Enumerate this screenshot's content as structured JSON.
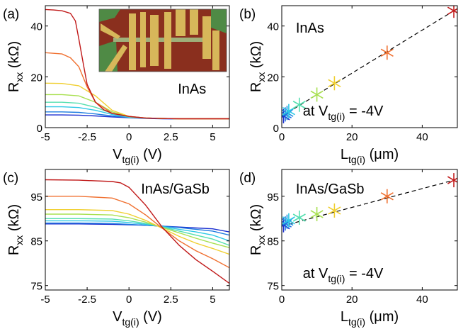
{
  "chart_data": [
    {
      "panel": "(a)",
      "type": "line",
      "annotation": "InAs",
      "inset": "optical micrograph of gated device",
      "xlabel": "V",
      "xlabel_sub": "tg(i)",
      "xlabel_unit": " (V)",
      "ylabel": "R",
      "ylabel_sub": "xx",
      "ylabel_unit": " (kΩ)",
      "xlim": [
        -5,
        6
      ],
      "ylim": [
        0,
        48
      ],
      "xticks": [
        -5,
        -2.5,
        0,
        2.5,
        5
      ],
      "xtick_labels": [
        "-5",
        "-2.5",
        "0",
        "2.5",
        "5"
      ],
      "yticks": [
        0,
        20,
        40
      ],
      "ytick_labels": [
        "0",
        "20",
        "40"
      ],
      "series": [
        {
          "color": "#1a2fd0",
          "x": [
            -5,
            -4,
            -3,
            -2,
            -1,
            0,
            1,
            2,
            3,
            4,
            5,
            6
          ],
          "y": [
            5.0,
            5.0,
            4.9,
            4.6,
            4.2,
            3.9,
            3.6,
            3.5,
            3.4,
            3.4,
            3.4,
            3.4
          ]
        },
        {
          "color": "#1e7de0",
          "x": [
            -5,
            -4,
            -3,
            -2,
            -1,
            0,
            1,
            2,
            3,
            4,
            5,
            6
          ],
          "y": [
            6.2,
            6.2,
            6.0,
            5.4,
            4.6,
            4.0,
            3.7,
            3.6,
            3.5,
            3.5,
            3.5,
            3.5
          ]
        },
        {
          "color": "#2ec9e6",
          "x": [
            -5,
            -4,
            -3,
            -2,
            -1,
            0,
            1,
            2,
            3,
            4,
            5,
            6
          ],
          "y": [
            8.2,
            8.2,
            7.9,
            6.8,
            5.2,
            4.1,
            3.7,
            3.6,
            3.5,
            3.5,
            3.5,
            3.5
          ]
        },
        {
          "color": "#55dfb0",
          "x": [
            -5,
            -4,
            -3,
            -2,
            -1,
            0,
            1,
            2,
            3,
            4,
            5,
            6
          ],
          "y": [
            10.0,
            10.0,
            9.6,
            8.0,
            5.6,
            4.2,
            3.8,
            3.6,
            3.5,
            3.5,
            3.5,
            3.5
          ]
        },
        {
          "color": "#a8e050",
          "x": [
            -5,
            -4,
            -3,
            -2,
            -1,
            0,
            1,
            2,
            3,
            4,
            5,
            6
          ],
          "y": [
            13.0,
            13.0,
            12.5,
            10.0,
            6.2,
            4.3,
            3.8,
            3.6,
            3.5,
            3.5,
            3.5,
            3.5
          ]
        },
        {
          "color": "#f0cf30",
          "x": [
            -5,
            -4,
            -3,
            -2,
            -1,
            0,
            1,
            2,
            3,
            4,
            5,
            6
          ],
          "y": [
            17.5,
            17.4,
            16.5,
            12.5,
            6.8,
            4.4,
            3.8,
            3.6,
            3.5,
            3.5,
            3.5,
            3.5
          ]
        },
        {
          "color": "#f07030",
          "x": [
            -5,
            -4,
            -3.5,
            -3,
            -2.5,
            -2,
            -1,
            0,
            1,
            2,
            3,
            4,
            5,
            6
          ],
          "y": [
            29.5,
            29.0,
            27.5,
            24.0,
            16.0,
            10.0,
            5.6,
            4.4,
            3.8,
            3.6,
            3.5,
            3.5,
            3.5,
            3.5
          ]
        },
        {
          "color": "#c01818",
          "x": [
            -5,
            -4.5,
            -4,
            -3.5,
            -3.2,
            -3,
            -2.7,
            -2.5,
            -2,
            -1.5,
            -1,
            0,
            1,
            2,
            3,
            4,
            5,
            6
          ],
          "y": [
            46.5,
            46.3,
            46.0,
            45.0,
            42.0,
            35.0,
            24.0,
            17.0,
            10.0,
            7.0,
            5.6,
            4.4,
            3.8,
            3.6,
            3.5,
            3.5,
            3.5,
            3.5
          ]
        }
      ]
    },
    {
      "panel": "(b)",
      "type": "scatter",
      "annotation": "InAs",
      "annotation2": "at V",
      "annotation2_sub": "tg(i)",
      "annotation2_tail": " = -4V",
      "xlabel": "L",
      "xlabel_sub": "tg(i)",
      "xlabel_unit": " (μm)",
      "ylabel": "R",
      "ylabel_sub": "xx",
      "ylabel_unit": " (kΩ)",
      "xlim": [
        0,
        50
      ],
      "ylim": [
        0,
        48
      ],
      "xticks": [
        0,
        20,
        40
      ],
      "xtick_labels": [
        "0",
        "20",
        "40"
      ],
      "yticks": [
        0,
        20,
        40
      ],
      "ytick_labels": [
        "0",
        "20",
        "40"
      ],
      "points": [
        {
          "x": 0.5,
          "y": 4.5,
          "color": "#1a2fd0"
        },
        {
          "x": 1,
          "y": 5.2,
          "color": "#1e6fe0"
        },
        {
          "x": 1.5,
          "y": 5.8,
          "color": "#1e8fe0"
        },
        {
          "x": 2,
          "y": 6.5,
          "color": "#2ec9e6"
        },
        {
          "x": 5,
          "y": 9.0,
          "color": "#55dfb0"
        },
        {
          "x": 10,
          "y": 13.0,
          "color": "#a8e050"
        },
        {
          "x": 15,
          "y": 17.5,
          "color": "#f0cf30"
        },
        {
          "x": 30,
          "y": 29.5,
          "color": "#f07030"
        },
        {
          "x": 49,
          "y": 46.0,
          "color": "#c01818"
        }
      ],
      "fit_line": {
        "x": [
          0,
          49
        ],
        "y": [
          4.5,
          46.0
        ]
      }
    },
    {
      "panel": "(c)",
      "type": "line",
      "annotation": "InAs/GaSb",
      "xlabel": "V",
      "xlabel_sub": "tg(i)",
      "xlabel_unit": " (V)",
      "ylabel": "R",
      "ylabel_sub": "xx",
      "ylabel_unit": " (kΩ)",
      "xlim": [
        -5,
        6
      ],
      "ylim": [
        74,
        101
      ],
      "xticks": [
        -5,
        -2.5,
        0,
        2.5,
        5
      ],
      "xtick_labels": [
        "-5",
        "-2.5",
        "0",
        "2.5",
        "5"
      ],
      "yticks": [
        75,
        85,
        95
      ],
      "ytick_labels": [
        "75",
        "85",
        "95"
      ],
      "series": [
        {
          "color": "#1a2fd0",
          "x": [
            -5,
            -3,
            -1,
            0,
            1,
            2,
            3,
            4,
            5,
            6
          ],
          "y": [
            88.8,
            88.8,
            88.7,
            88.6,
            88.5,
            88.3,
            88.1,
            87.9,
            87.7,
            87.0
          ]
        },
        {
          "color": "#1e7de0",
          "x": [
            -5,
            -3,
            -1,
            0,
            1,
            2,
            3,
            4,
            5,
            6
          ],
          "y": [
            89.0,
            89.0,
            88.9,
            88.7,
            88.5,
            88.3,
            88.0,
            87.6,
            87.2,
            86.3
          ]
        },
        {
          "color": "#2ec9e6",
          "x": [
            -5,
            -3,
            -1,
            0,
            1,
            2,
            3,
            4,
            5,
            6
          ],
          "y": [
            89.5,
            89.5,
            89.4,
            89.1,
            88.7,
            88.2,
            87.6,
            87.0,
            86.3,
            85.0
          ]
        },
        {
          "color": "#55dfb0",
          "x": [
            -5,
            -3,
            -1,
            0,
            1,
            2,
            3,
            4,
            5,
            6
          ],
          "y": [
            90.0,
            90.0,
            89.9,
            89.5,
            88.9,
            88.1,
            87.2,
            86.3,
            85.4,
            84.0
          ]
        },
        {
          "color": "#a8e050",
          "x": [
            -5,
            -3,
            -1,
            0,
            1,
            2,
            3,
            4,
            5,
            6
          ],
          "y": [
            91.0,
            91.0,
            90.8,
            90.2,
            89.2,
            88.0,
            86.8,
            85.6,
            84.5,
            83.5
          ]
        },
        {
          "color": "#f0cf30",
          "x": [
            -5,
            -3,
            -1,
            0,
            1,
            2,
            3,
            4,
            5,
            6
          ],
          "y": [
            92.0,
            92.0,
            91.8,
            91.0,
            89.6,
            87.8,
            86.0,
            84.5,
            83.3,
            82.0
          ]
        },
        {
          "color": "#f07030",
          "x": [
            -5,
            -3,
            -1,
            0,
            1,
            2,
            3,
            4,
            5,
            6
          ],
          "y": [
            95.0,
            95.0,
            94.6,
            93.3,
            90.8,
            87.8,
            85.0,
            82.8,
            81.0,
            79.0
          ]
        },
        {
          "color": "#c01818",
          "x": [
            -5,
            -3,
            -1,
            -0.5,
            0,
            1,
            2,
            3,
            4,
            5,
            6
          ],
          "y": [
            98.7,
            98.6,
            98.3,
            98.0,
            97.0,
            93.0,
            88.0,
            84.0,
            80.8,
            78.2,
            75.5
          ]
        }
      ]
    },
    {
      "panel": "(d)",
      "type": "scatter",
      "annotation": "InAs/GaSb",
      "annotation2": "at V",
      "annotation2_sub": "tg(i)",
      "annotation2_tail": " = -4V",
      "xlabel": "L",
      "xlabel_sub": "tg(i)",
      "xlabel_unit": " (μm)",
      "ylabel": "R",
      "ylabel_sub": "xx",
      "ylabel_unit": " (kΩ)",
      "xlim": [
        0,
        50
      ],
      "ylim": [
        74,
        101
      ],
      "xticks": [
        0,
        20,
        40
      ],
      "xtick_labels": [
        "0",
        "20",
        "40"
      ],
      "yticks": [
        75,
        85,
        95
      ],
      "ytick_labels": [
        "75",
        "85",
        "95"
      ],
      "points": [
        {
          "x": 0.5,
          "y": 88.5,
          "color": "#1a2fd0"
        },
        {
          "x": 1,
          "y": 88.9,
          "color": "#1e6fe0"
        },
        {
          "x": 1.5,
          "y": 89.3,
          "color": "#1e8fe0"
        },
        {
          "x": 2,
          "y": 89.6,
          "color": "#2ec9e6"
        },
        {
          "x": 5,
          "y": 90.2,
          "color": "#55dfb0"
        },
        {
          "x": 10,
          "y": 91.0,
          "color": "#a8e050"
        },
        {
          "x": 15,
          "y": 91.8,
          "color": "#f0cf30"
        },
        {
          "x": 30,
          "y": 95.0,
          "color": "#f07030"
        },
        {
          "x": 49,
          "y": 98.6,
          "color": "#c01818"
        }
      ],
      "fit_line": {
        "x": [
          0,
          49
        ],
        "y": [
          88.3,
          98.6
        ]
      }
    }
  ]
}
